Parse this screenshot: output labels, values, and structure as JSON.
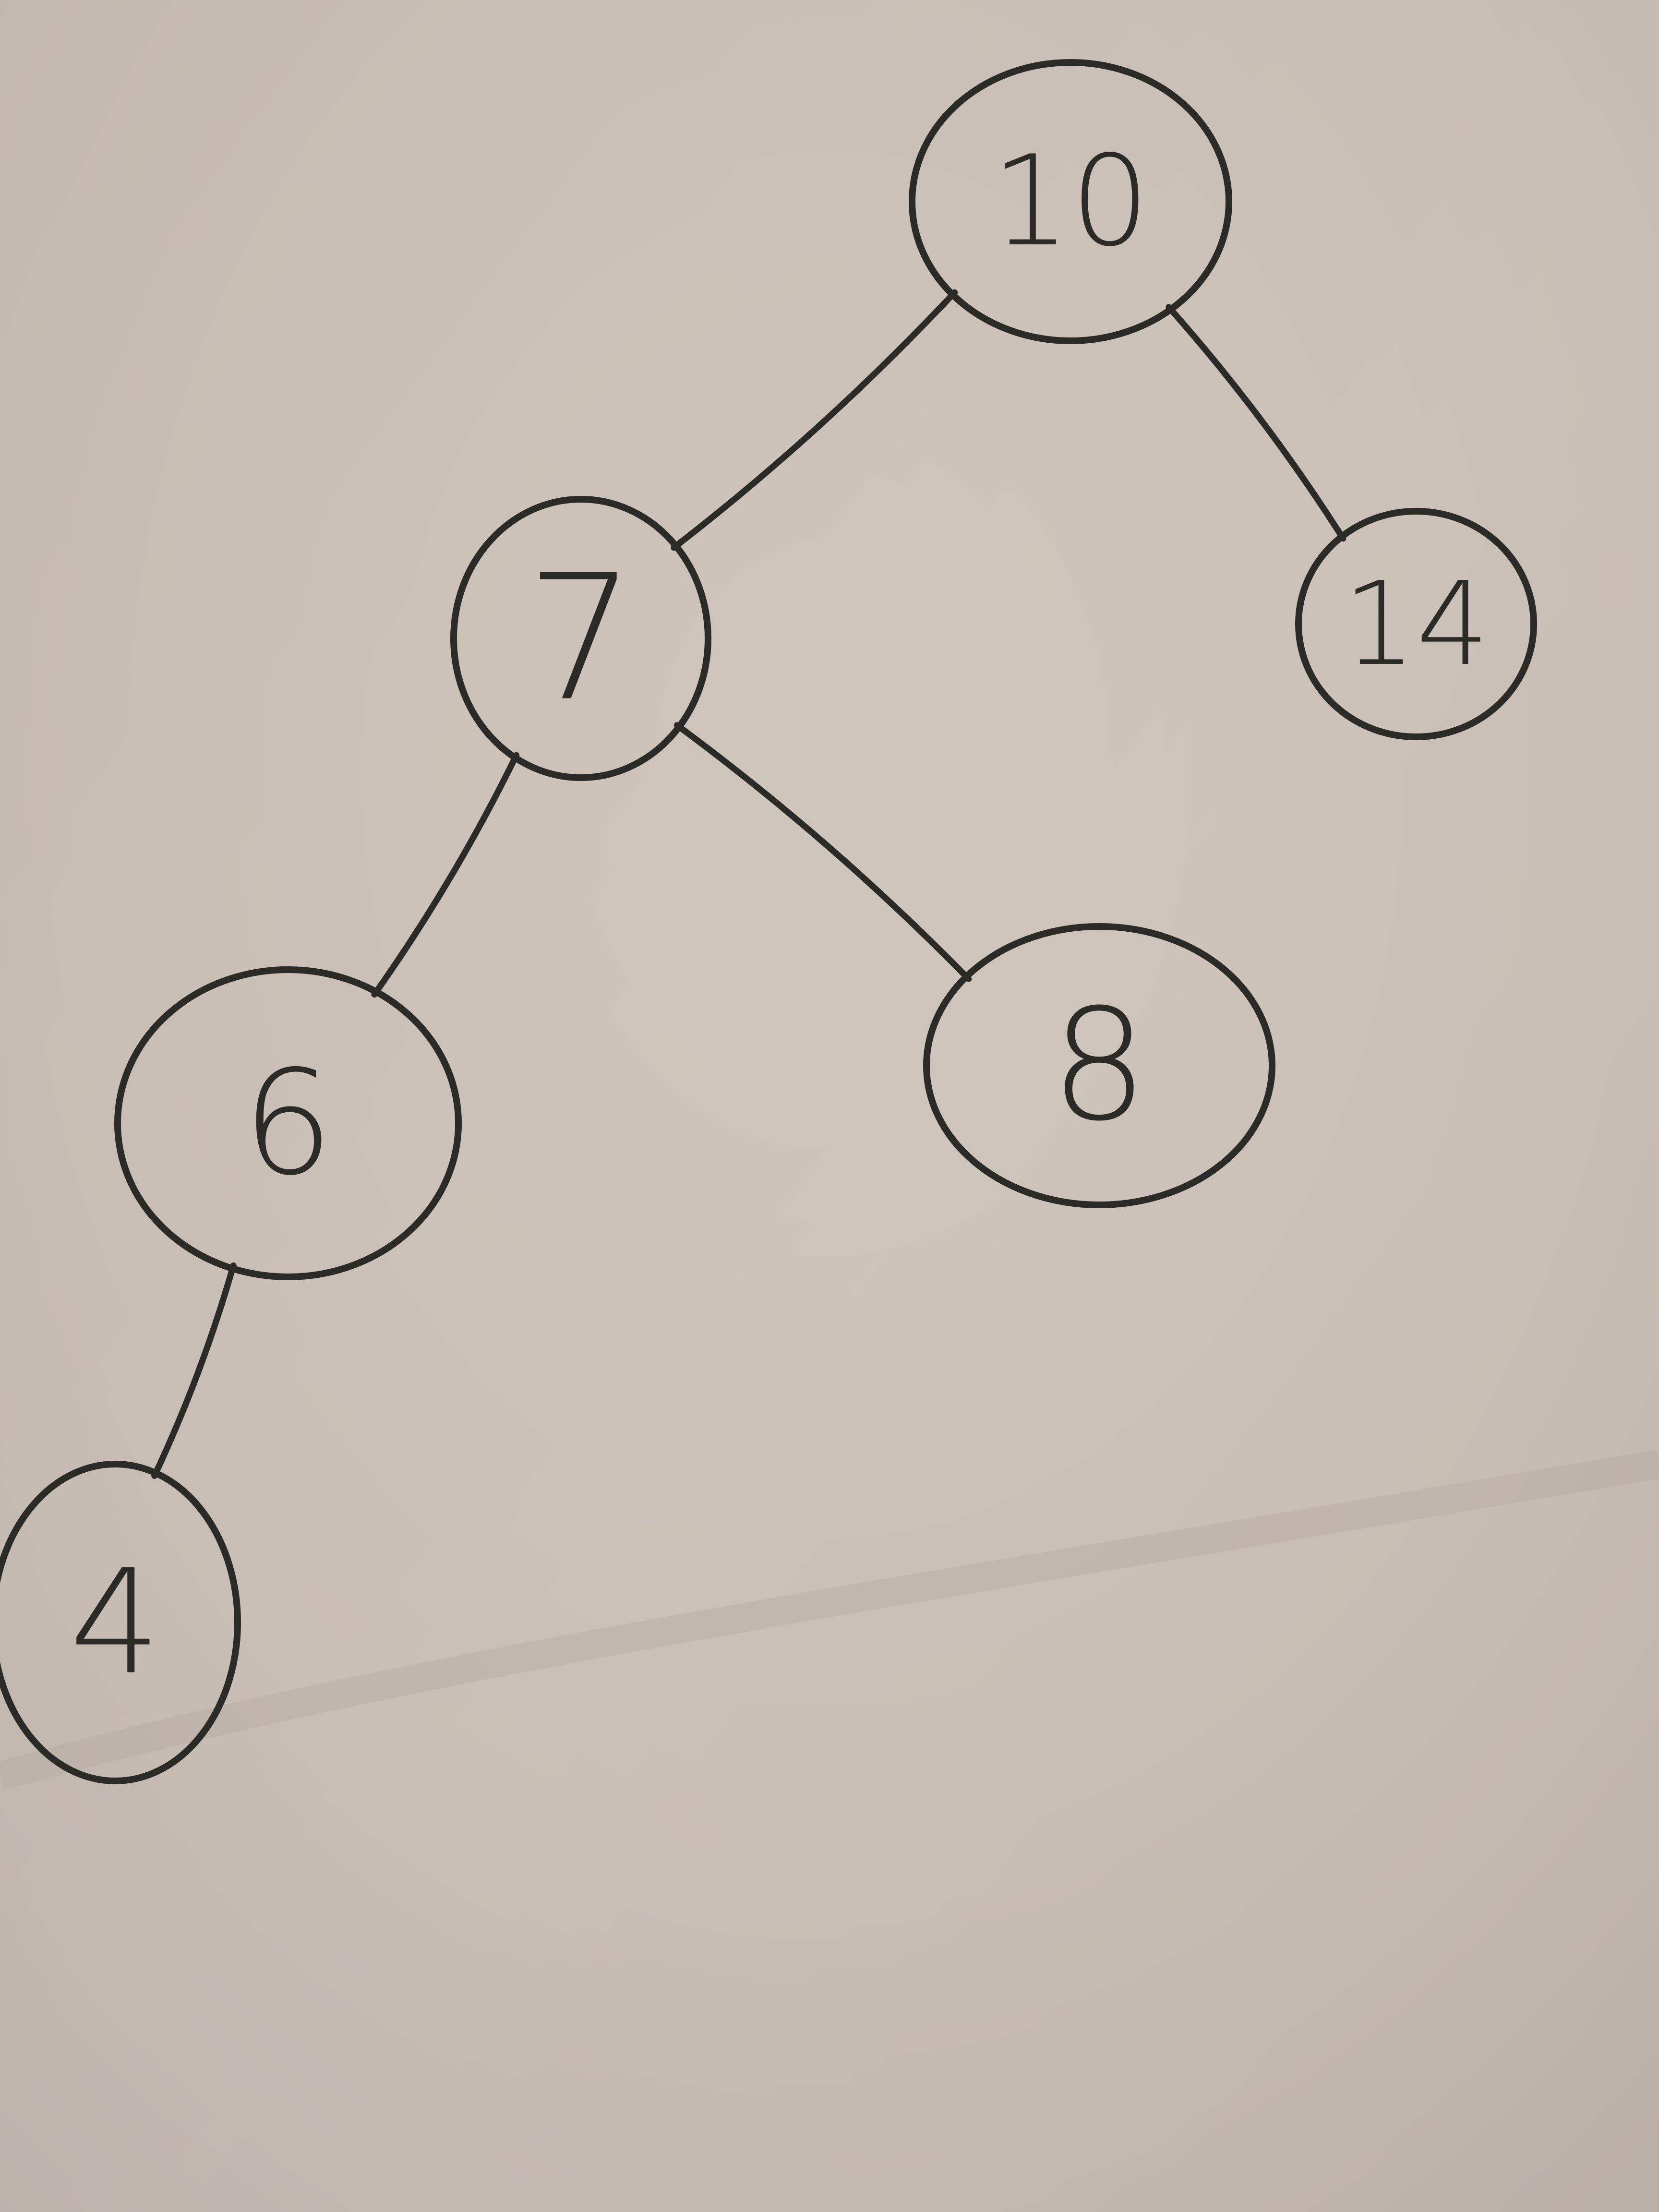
{
  "tree": {
    "nodes": [
      {
        "id": "n10",
        "label": "10"
      },
      {
        "id": "n7",
        "label": "7"
      },
      {
        "id": "n14",
        "label": "14"
      },
      {
        "id": "n6",
        "label": "6"
      },
      {
        "id": "n8",
        "label": "8"
      },
      {
        "id": "n4",
        "label": "4"
      }
    ],
    "edges": [
      {
        "from": "n10",
        "to": "n7"
      },
      {
        "from": "n10",
        "to": "n14"
      },
      {
        "from": "n7",
        "to": "n6"
      },
      {
        "from": "n7",
        "to": "n8"
      },
      {
        "from": "n6",
        "to": "n4"
      }
    ]
  },
  "colors": {
    "ink": "#2b2a27",
    "paper": "#c7bcb3"
  }
}
